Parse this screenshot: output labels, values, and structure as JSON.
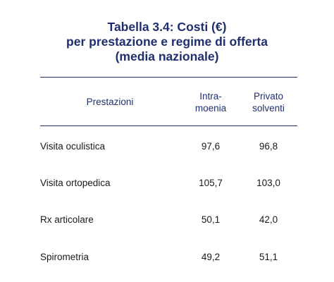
{
  "table": {
    "title_lines": [
      "Tabella 3.4: Costi (€)",
      "per prestazione e regime di offerta",
      "(media nazionale)"
    ],
    "header": {
      "row_label": "Prestazioni",
      "col1_lines": [
        "Intra-",
        "moenia"
      ],
      "col2_lines": [
        "Privato",
        "solventi"
      ]
    },
    "rows": [
      {
        "label": "Visita oculistica",
        "intramoenia": "97,6",
        "privato": "96,8"
      },
      {
        "label": "Visita ortopedica",
        "intramoenia": "105,7",
        "privato": "103,0"
      },
      {
        "label": "Rx articolare",
        "intramoenia": "50,1",
        "privato": "42,0"
      },
      {
        "label": "Spirometria",
        "intramoenia": "49,2",
        "privato": "51,1"
      }
    ]
  },
  "colors": {
    "title": "#1f2f6e",
    "rule": "#1f2f6e",
    "text": "#1a1a1a"
  }
}
